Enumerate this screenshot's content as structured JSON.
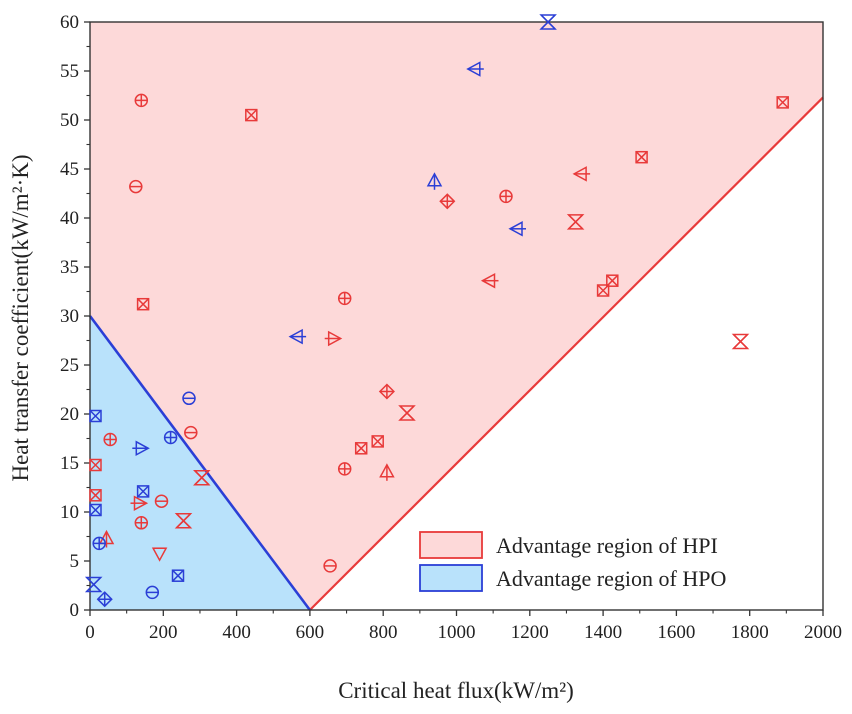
{
  "chart_data": {
    "type": "scatter",
    "xlabel": "Critical heat flux(kW/m²)",
    "ylabel": "Heat transfer coefficient(kW/m²·K)",
    "xlim": [
      0,
      2000
    ],
    "ylim": [
      0,
      60
    ],
    "xticks": [
      "0",
      "200",
      "400",
      "600",
      "800",
      "1000",
      "1200",
      "1400",
      "1600",
      "1800",
      "2000"
    ],
    "yticks": [
      "0",
      "5",
      "10",
      "15",
      "20",
      "25",
      "30",
      "35",
      "40",
      "45",
      "50",
      "55",
      "60"
    ],
    "grid": false,
    "legend_position": "bottom-right",
    "regions": [
      {
        "name": "Advantage region of HPI",
        "fill": "#fdd9d9",
        "stroke": "#e83a3a",
        "polygon": [
          [
            0,
            30
          ],
          [
            0,
            60
          ],
          [
            2000,
            60
          ],
          [
            2000,
            52.3
          ],
          [
            600,
            0
          ]
        ]
      },
      {
        "name": "Advantage region of HPO",
        "fill": "#b9e2fb",
        "stroke": "#2b3fd6",
        "polygon": [
          [
            0,
            0
          ],
          [
            0,
            30
          ],
          [
            600,
            0
          ]
        ]
      }
    ],
    "series": [
      {
        "color": "#e83a3a",
        "points": [
          {
            "x": 140,
            "y": 52,
            "marker": "circle-plus"
          },
          {
            "x": 440,
            "y": 50.5,
            "marker": "square-x"
          },
          {
            "x": 125,
            "y": 43.2,
            "marker": "circle-minus"
          },
          {
            "x": 145,
            "y": 31.2,
            "marker": "square-x"
          },
          {
            "x": 1890,
            "y": 51.8,
            "marker": "square-x"
          },
          {
            "x": 1505,
            "y": 46.2,
            "marker": "square-x"
          },
          {
            "x": 1340,
            "y": 44.5,
            "marker": "tri-left"
          },
          {
            "x": 1135,
            "y": 42.2,
            "marker": "circle-plus"
          },
          {
            "x": 975,
            "y": 41.7,
            "marker": "diamond-plus"
          },
          {
            "x": 1325,
            "y": 39.6,
            "marker": "hourglass-x"
          },
          {
            "x": 1090,
            "y": 33.6,
            "marker": "tri-left"
          },
          {
            "x": 1425,
            "y": 33.6,
            "marker": "square-x"
          },
          {
            "x": 1400,
            "y": 32.6,
            "marker": "square-x"
          },
          {
            "x": 695,
            "y": 31.8,
            "marker": "circle-plus"
          },
          {
            "x": 665,
            "y": 27.7,
            "marker": "tri-right"
          },
          {
            "x": 1775,
            "y": 27.4,
            "marker": "hourglass-x"
          },
          {
            "x": 810,
            "y": 22.3,
            "marker": "diamond-plus"
          },
          {
            "x": 865,
            "y": 20.1,
            "marker": "hourglass-x"
          },
          {
            "x": 275,
            "y": 18.1,
            "marker": "circle-minus"
          },
          {
            "x": 55,
            "y": 17.4,
            "marker": "circle-plus"
          },
          {
            "x": 785,
            "y": 17.2,
            "marker": "square-x"
          },
          {
            "x": 740,
            "y": 16.5,
            "marker": "square-x"
          },
          {
            "x": 15,
            "y": 14.8,
            "marker": "square-x"
          },
          {
            "x": 695,
            "y": 14.4,
            "marker": "circle-plus"
          },
          {
            "x": 810,
            "y": 14.1,
            "marker": "tri-up"
          },
          {
            "x": 305,
            "y": 13.5,
            "marker": "hourglass-x"
          },
          {
            "x": 15,
            "y": 11.7,
            "marker": "square-x"
          },
          {
            "x": 195,
            "y": 11.1,
            "marker": "circle-minus"
          },
          {
            "x": 135,
            "y": 10.9,
            "marker": "tri-right"
          },
          {
            "x": 255,
            "y": 9.1,
            "marker": "hourglass-x"
          },
          {
            "x": 140,
            "y": 8.9,
            "marker": "circle-plus"
          },
          {
            "x": 45,
            "y": 7.3,
            "marker": "tri-up"
          },
          {
            "x": 190,
            "y": 5.8,
            "marker": "tri-down"
          },
          {
            "x": 655,
            "y": 4.5,
            "marker": "circle-minus"
          }
        ]
      },
      {
        "color": "#2b3fd6",
        "points": [
          {
            "x": 1250,
            "y": 60,
            "marker": "hourglass-x"
          },
          {
            "x": 1050,
            "y": 55.2,
            "marker": "tri-left"
          },
          {
            "x": 940,
            "y": 43.8,
            "marker": "tri-up"
          },
          {
            "x": 1165,
            "y": 38.9,
            "marker": "tri-left"
          },
          {
            "x": 565,
            "y": 27.9,
            "marker": "tri-left"
          },
          {
            "x": 270,
            "y": 21.6,
            "marker": "circle-minus"
          },
          {
            "x": 15,
            "y": 19.8,
            "marker": "square-x"
          },
          {
            "x": 220,
            "y": 17.6,
            "marker": "circle-plus"
          },
          {
            "x": 140,
            "y": 16.5,
            "marker": "tri-right"
          },
          {
            "x": 145,
            "y": 12.1,
            "marker": "square-x"
          },
          {
            "x": 15,
            "y": 10.2,
            "marker": "square-x"
          },
          {
            "x": 25,
            "y": 6.8,
            "marker": "circle-plus"
          },
          {
            "x": 240,
            "y": 3.5,
            "marker": "square-x"
          },
          {
            "x": 10,
            "y": 2.6,
            "marker": "hourglass-x"
          },
          {
            "x": 170,
            "y": 1.8,
            "marker": "circle-minus"
          },
          {
            "x": 40,
            "y": 1.1,
            "marker": "diamond-plus"
          }
        ]
      }
    ]
  }
}
